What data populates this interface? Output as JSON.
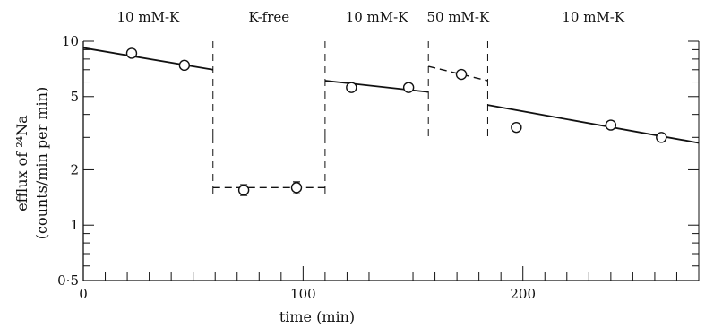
{
  "chart_data": {
    "type": "scatter",
    "title": "",
    "xlabel": "time (min)",
    "ylabel_line1": "efflux of ²⁴Na",
    "ylabel_line2": "(counts/min per min)",
    "xlim": [
      0,
      280
    ],
    "ylim": [
      0.5,
      10
    ],
    "yscale": "log",
    "x_ticks": [
      0,
      100,
      200
    ],
    "x_tick_labels": [
      "0",
      "100",
      "200"
    ],
    "y_ticks": [
      0.5,
      1,
      2,
      5,
      10
    ],
    "y_tick_labels": [
      "0·5",
      "1",
      "2",
      "5",
      "10"
    ],
    "grid": false,
    "legend": "none",
    "phase_boundaries": [
      59,
      110,
      157,
      184
    ],
    "phases": [
      {
        "label": "10 mM-K",
        "x_start": 0,
        "x_end": 59
      },
      {
        "label": "K-free",
        "x_start": 59,
        "x_end": 110
      },
      {
        "label": "10 mM-K",
        "x_start": 110,
        "x_end": 157
      },
      {
        "label": "50 mM-K",
        "x_start": 157,
        "x_end": 184
      },
      {
        "label": "10 mM-K",
        "x_start": 184,
        "x_end": 280
      }
    ],
    "points": [
      {
        "x": 22,
        "y": 8.6
      },
      {
        "x": 46,
        "y": 7.4
      },
      {
        "x": 73,
        "y": 1.55,
        "err": [
          1.45,
          1.66
        ]
      },
      {
        "x": 97,
        "y": 1.6,
        "err": [
          1.48,
          1.72
        ]
      },
      {
        "x": 122,
        "y": 5.6
      },
      {
        "x": 148,
        "y": 5.6
      },
      {
        "x": 172,
        "y": 6.6
      },
      {
        "x": 197,
        "y": 3.4
      },
      {
        "x": 240,
        "y": 3.5
      },
      {
        "x": 263,
        "y": 3.0
      }
    ],
    "fit_lines": [
      {
        "x": [
          0,
          59
        ],
        "y": [
          9.2,
          7.0
        ],
        "style": "solid"
      },
      {
        "x": [
          59,
          110
        ],
        "y": [
          1.6,
          1.6
        ],
        "style": "dashed"
      },
      {
        "x": [
          110,
          157
        ],
        "y": [
          6.1,
          5.3
        ],
        "style": "solid"
      },
      {
        "x": [
          157,
          184
        ],
        "y": [
          7.3,
          6.1
        ],
        "style": "dashed"
      },
      {
        "x": [
          184,
          280
        ],
        "y": [
          4.5,
          2.8
        ],
        "style": "solid"
      }
    ]
  }
}
